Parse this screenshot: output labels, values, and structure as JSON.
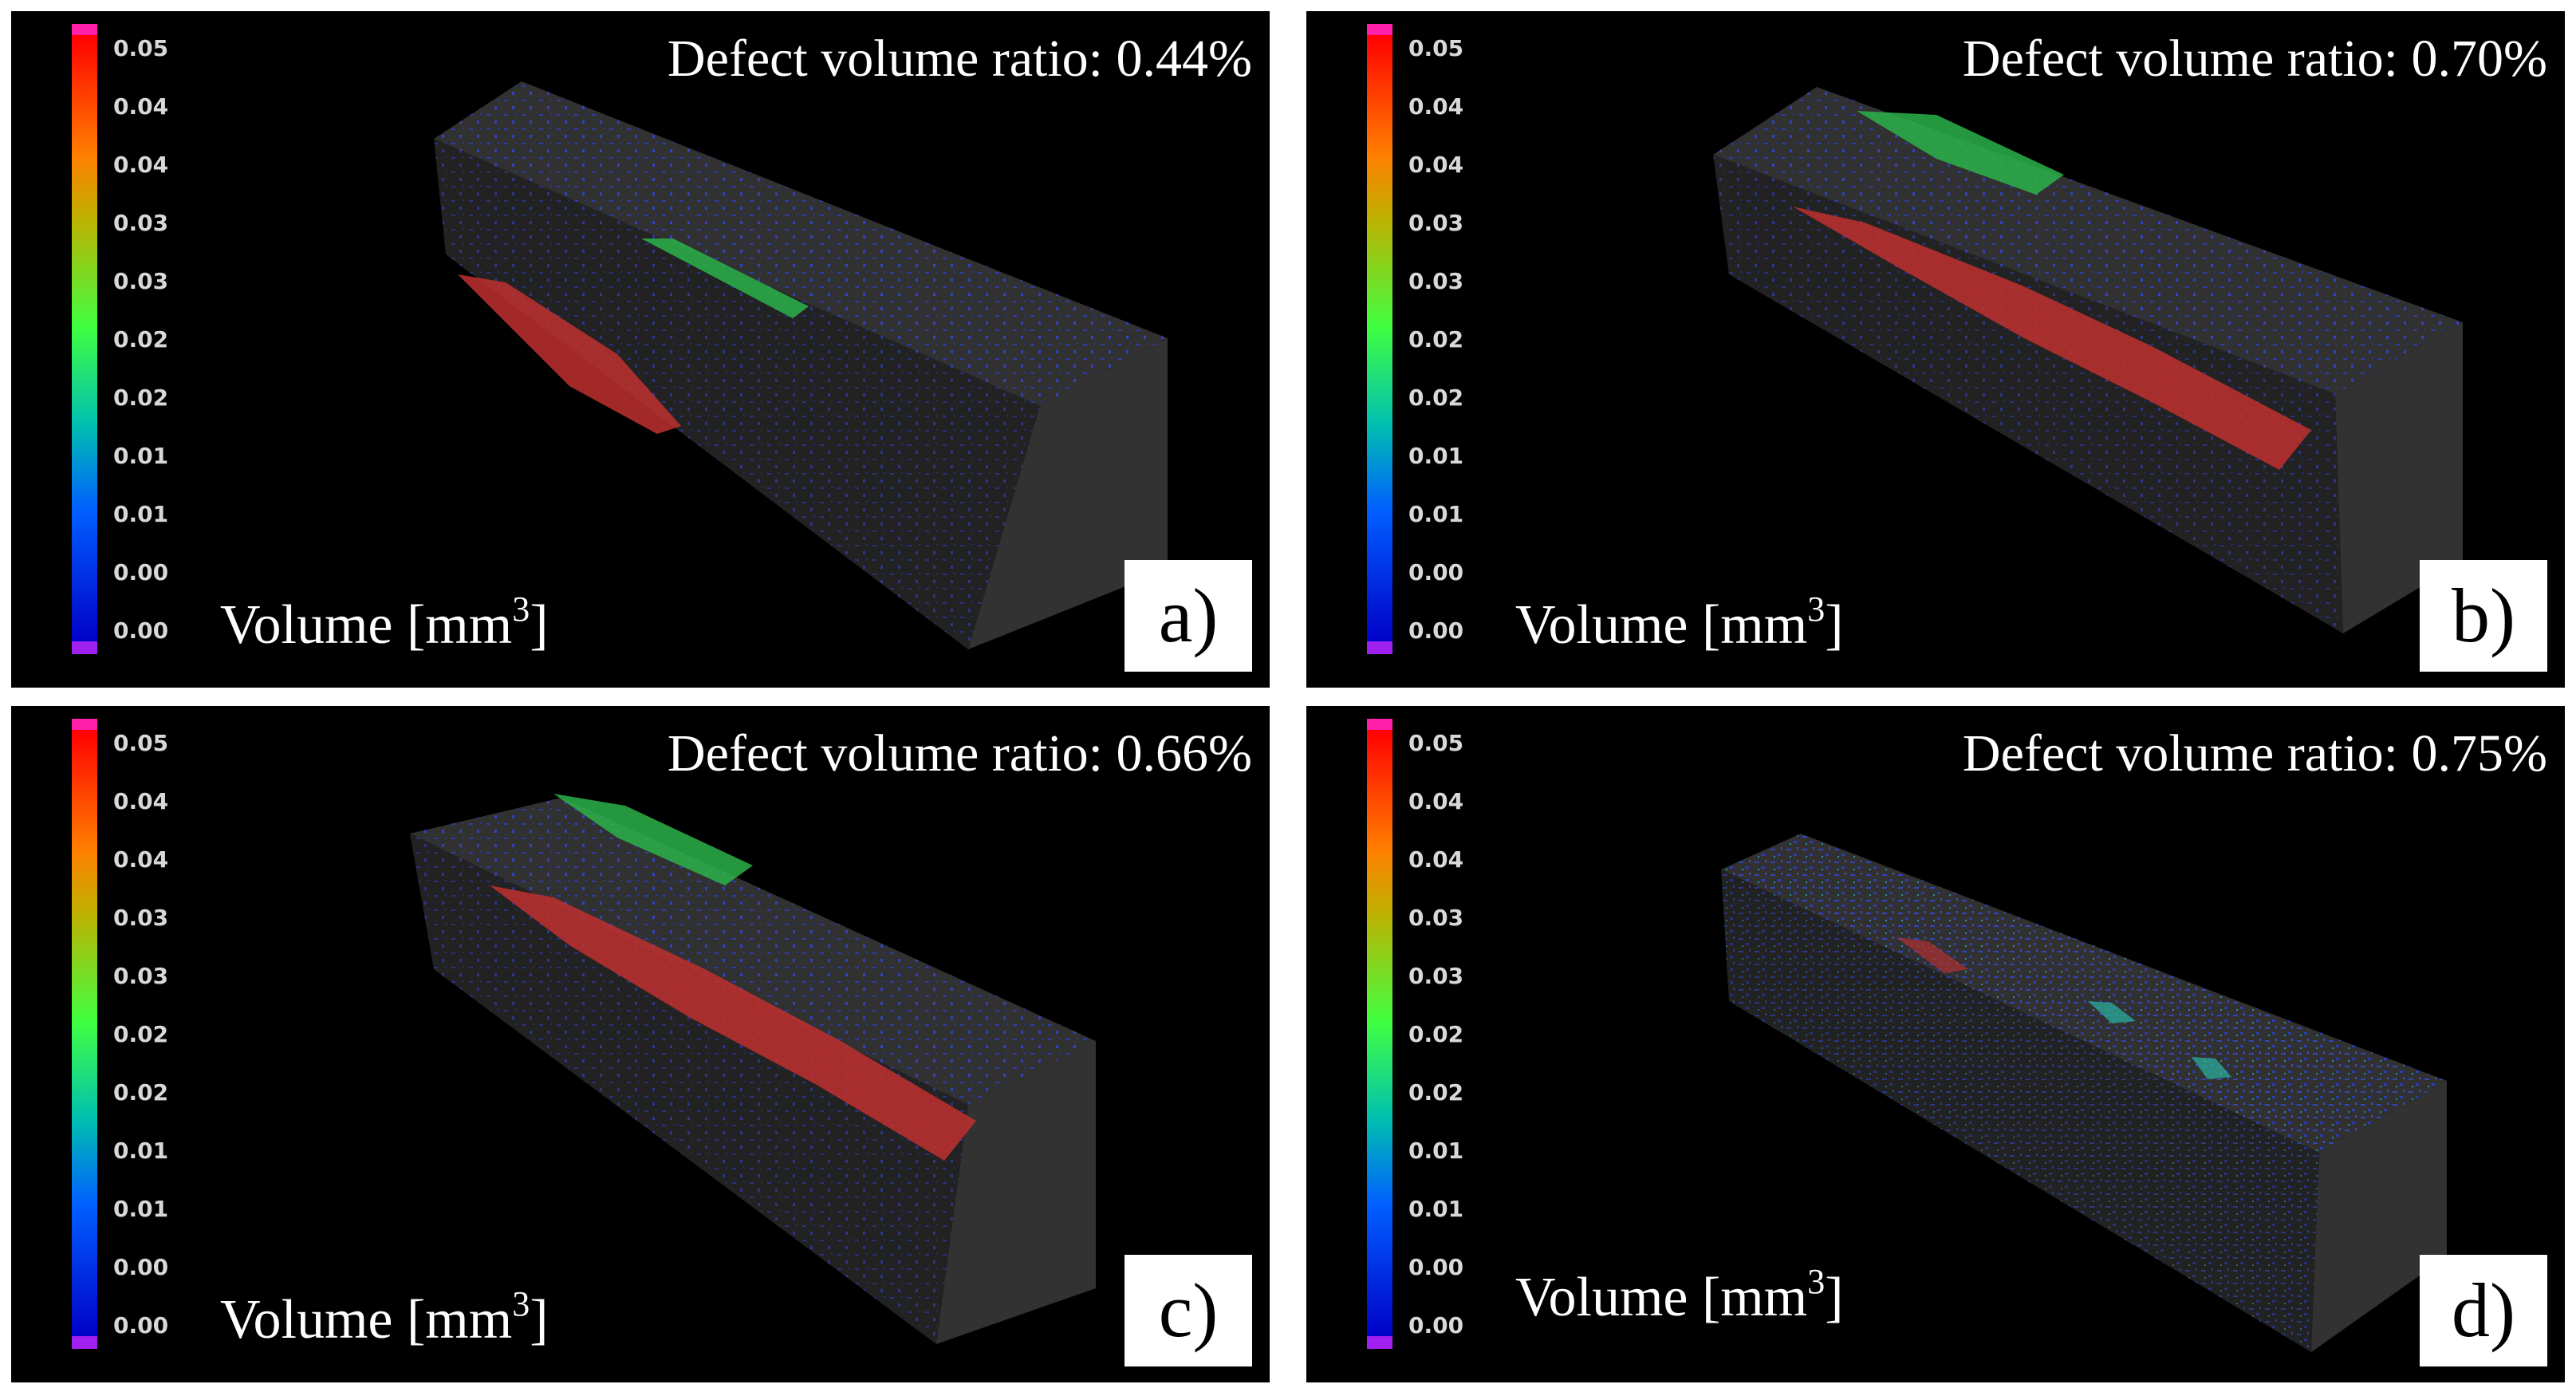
{
  "figure": {
    "colorbar": {
      "tick_labels": [
        "0.05",
        "0.04",
        "0.04",
        "0.03",
        "0.03",
        "0.02",
        "0.02",
        "0.01",
        "0.01",
        "0.00",
        "0.00"
      ],
      "unit_label_prefix": "Volume [mm",
      "unit_label_exponent": "3",
      "unit_label_suffix": "]",
      "colors": [
        "#ff1fa8",
        "#ff0000",
        "#ff8000",
        "#40ff40",
        "#0060ff",
        "#0000c8",
        "#a020f0"
      ]
    },
    "panels": [
      {
        "id": "a",
        "tag": "a)",
        "defect_ratio_text": "Defect volume ratio: 0.44%"
      },
      {
        "id": "b",
        "tag": "b)",
        "defect_ratio_text": "Defect volume ratio: 0.70%"
      },
      {
        "id": "c",
        "tag": "c)",
        "defect_ratio_text": "Defect volume ratio: 0.66%"
      },
      {
        "id": "d",
        "tag": "d)",
        "defect_ratio_text": "Defect volume ratio: 0.75%"
      }
    ]
  }
}
